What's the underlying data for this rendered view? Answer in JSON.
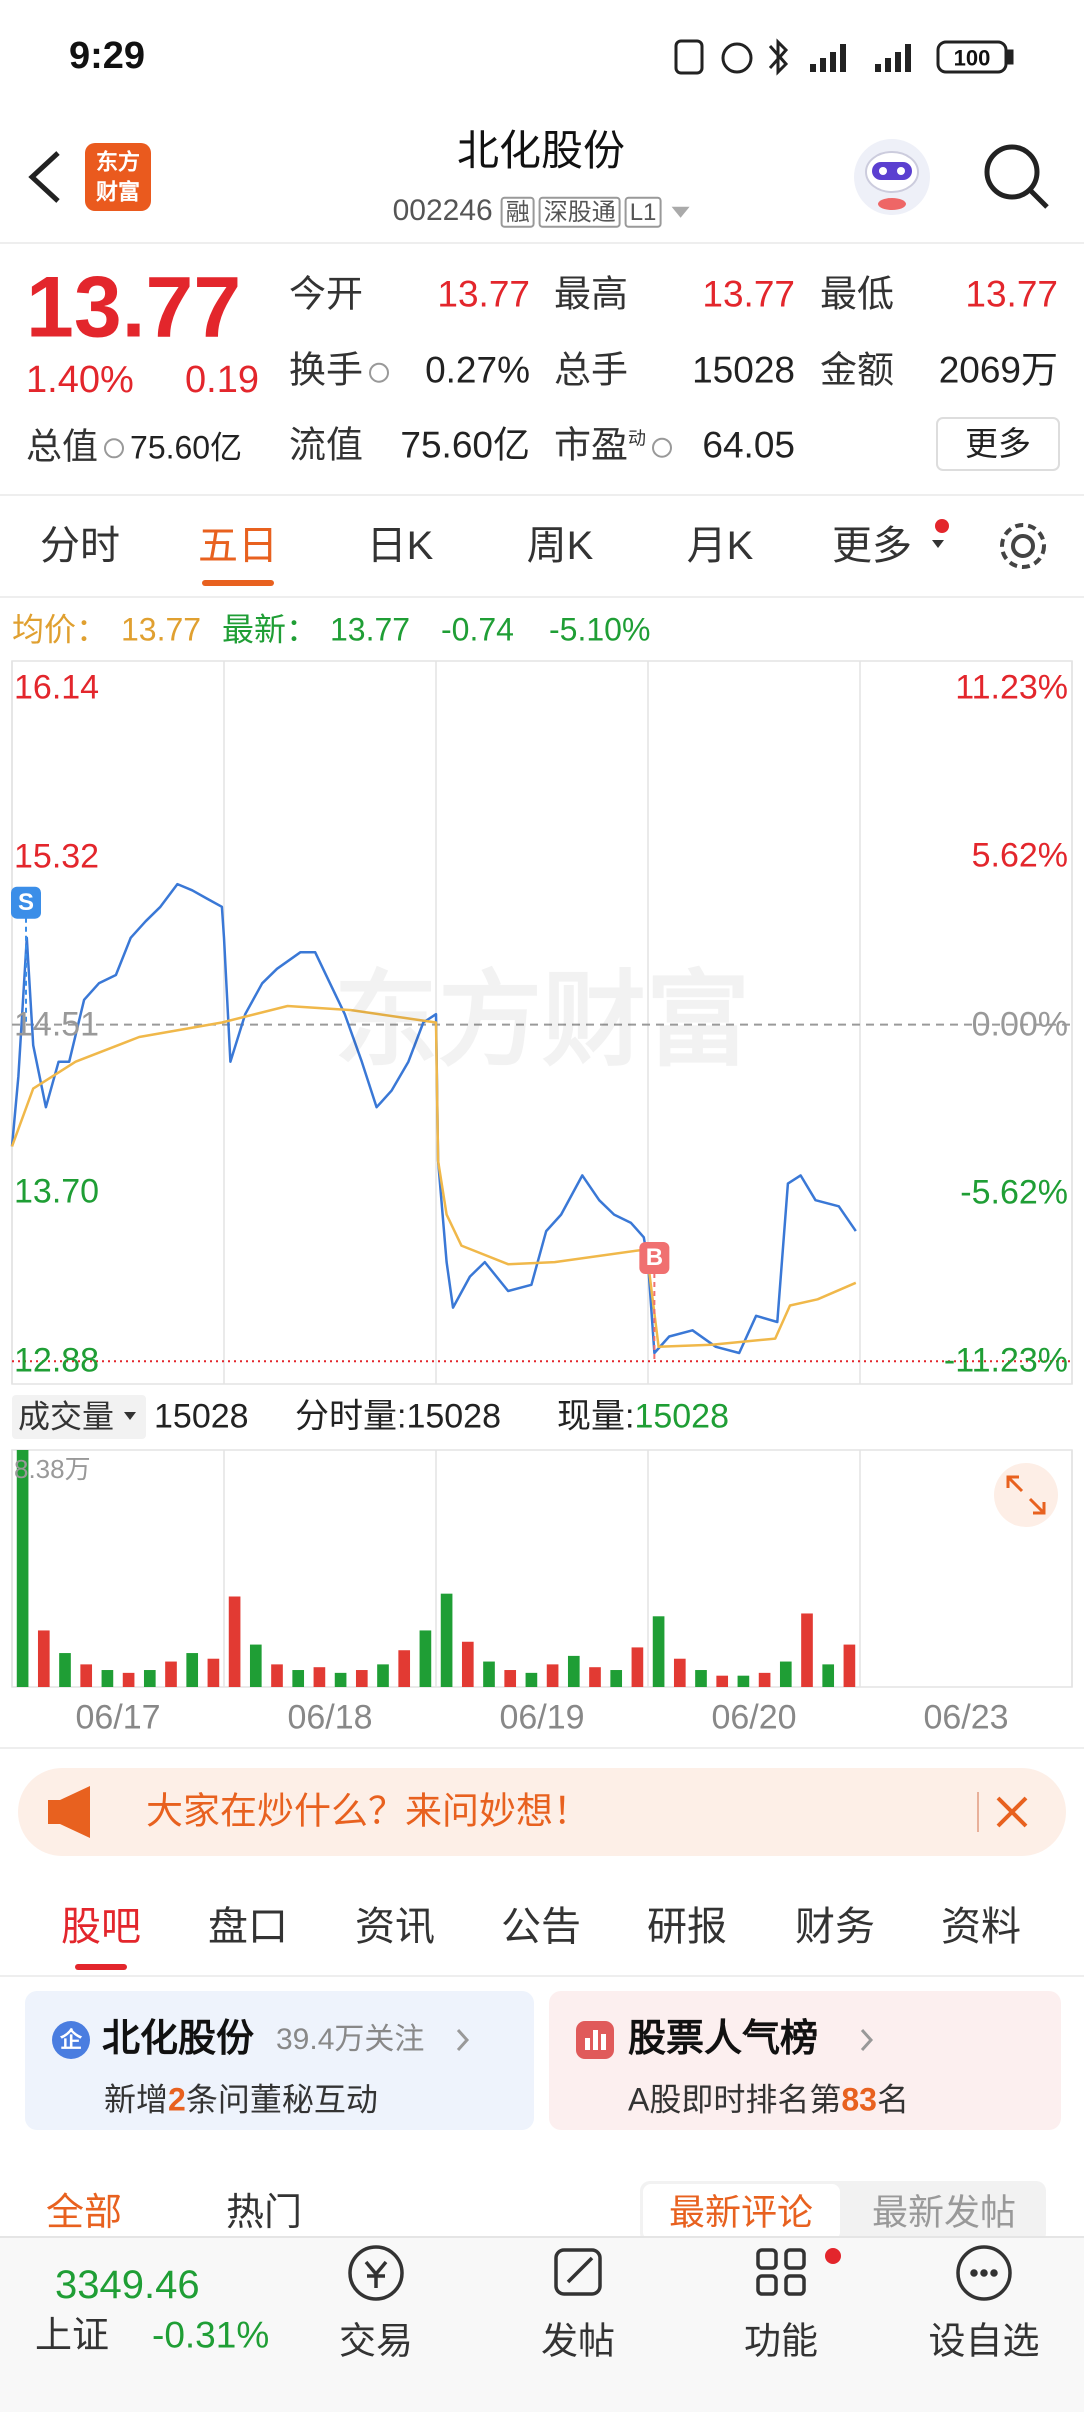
{
  "status_bar": {
    "time": "9:29",
    "battery": "100"
  },
  "header": {
    "logo": [
      "东方",
      "财富"
    ],
    "title": "北化股份",
    "code": "002246",
    "tags": [
      "融",
      "深股通",
      "L1"
    ]
  },
  "quote": {
    "price": "13.77",
    "change_pct": "1.40%",
    "change": "0.19",
    "total_value": {
      "label": "总值",
      "value": "75.60亿"
    },
    "stats": [
      {
        "label": "今开",
        "value": "13.77"
      },
      {
        "label": "最高",
        "value": "13.77"
      },
      {
        "label": "最低",
        "value": "13.77"
      },
      {
        "label": "换手",
        "value": "0.27%",
        "info": true
      },
      {
        "label": "总手",
        "value": "15028"
      },
      {
        "label": "金额",
        "value": "2069万"
      },
      {
        "label": "流值",
        "value": "75.60亿"
      },
      {
        "label": "市盈",
        "sup": "动",
        "value": "64.05",
        "info": true
      }
    ],
    "more": "更多"
  },
  "period_tabs": {
    "items": [
      "分时",
      "五日",
      "日K",
      "周K",
      "月K",
      "更多"
    ],
    "active": 1
  },
  "chart_info": {
    "avg_label": "均价：",
    "avg": "13.77",
    "latest_label": "最新：",
    "latest": "13.77",
    "change": "-0.74",
    "change_pct": "-5.10%"
  },
  "volume_info": {
    "selector": "成交量",
    "total": "15028",
    "minute_label": "分时量:",
    "minute": "15028",
    "current_label": "现量:",
    "current": "15028"
  },
  "chart_data": [
    {
      "type": "line",
      "xlim": [
        0,
        5
      ],
      "xgrid": [
        0,
        1,
        2,
        3,
        4,
        5
      ],
      "ylim": [
        12.77,
        16.27
      ],
      "yticks": [
        16.14,
        15.32,
        14.51,
        {
          "value": 13.7,
          "label": "13.70"
        },
        12.88
      ],
      "y2lim": [
        -11.99,
        12.13
      ],
      "y2ticks": [
        {
          "value": 11.23,
          "label": "11.23%"
        },
        {
          "value": 5.62,
          "label": "5.62%"
        },
        {
          "value": 0,
          "label": "0.00%"
        },
        {
          "value": -5.62,
          "label": "-5.62%"
        },
        {
          "value": -11.23,
          "label": "-11.23%"
        }
      ],
      "reference_line": 14.51,
      "lower_limit": 12.88,
      "watermark": "东方财富",
      "annotations": [
        {
          "text": "S",
          "x": 0,
          "y": 15.1,
          "color": "#3b8ee8"
        },
        {
          "text": "B",
          "x": 3.03,
          "y": 13.38,
          "color": "#f07070"
        }
      ],
      "series": [
        {
          "color": "#3a78d6",
          "x": [
            0,
            0.03,
            0.07,
            0.1,
            0.16,
            0.22,
            0.27,
            0.34,
            0.41,
            0.49,
            0.56,
            0.63,
            0.7,
            0.78,
            0.85,
            0.92,
            0.99,
            1.0,
            1.03,
            1.1,
            1.18,
            1.25,
            1.36,
            1.43,
            1.5,
            1.57,
            1.65,
            1.72,
            1.79,
            1.87,
            1.94,
            2.0,
            2.01,
            2.05,
            2.08,
            2.16,
            2.23,
            2.34,
            2.45,
            2.52,
            2.59,
            2.69,
            2.77,
            2.84,
            2.92,
            2.98,
            3.0,
            3.03,
            3.1,
            3.21,
            3.32,
            3.43,
            3.51,
            3.61,
            3.66,
            3.72,
            3.79,
            3.9,
            3.98
          ],
          "values": [
            13.92,
            14.26,
            14.93,
            14.41,
            14.11,
            14.33,
            14.33,
            14.63,
            14.71,
            14.75,
            14.93,
            15.01,
            15.08,
            15.19,
            15.16,
            15.12,
            15.08,
            14.93,
            14.33,
            14.56,
            14.71,
            14.78,
            14.86,
            14.86,
            14.71,
            14.56,
            14.33,
            14.11,
            14.19,
            14.33,
            14.52,
            14.56,
            13.85,
            13.36,
            13.14,
            13.29,
            13.36,
            13.22,
            13.25,
            13.51,
            13.59,
            13.78,
            13.66,
            13.59,
            13.55,
            13.48,
            13.36,
            12.92,
            13.0,
            13.03,
            12.95,
            12.92,
            13.1,
            13.07,
            13.74,
            13.78,
            13.66,
            13.63,
            13.51
          ]
        },
        {
          "color": "#f0b84a",
          "x": [
            0,
            0.1,
            0.3,
            0.6,
            0.99,
            1.3,
            1.6,
            2.0,
            2.01,
            2.05,
            2.12,
            2.34,
            2.56,
            2.98,
            3.0,
            3.05,
            3.3,
            3.6,
            3.67,
            3.8,
            3.98
          ],
          "values": [
            13.92,
            14.2,
            14.33,
            14.45,
            14.52,
            14.6,
            14.58,
            14.52,
            13.85,
            13.59,
            13.44,
            13.35,
            13.36,
            13.42,
            13.36,
            12.95,
            12.96,
            12.99,
            13.15,
            13.18,
            13.26
          ]
        }
      ]
    },
    {
      "type": "bar",
      "xlim": [
        0,
        5
      ],
      "xgrid": [
        0,
        1,
        2,
        3,
        4,
        5
      ],
      "ylim": [
        0,
        8.38
      ],
      "yticks": [
        {
          "value": 8.38,
          "label": "8.38万"
        }
      ],
      "xticks": [
        {
          "value": 0.5,
          "label": "06/17"
        },
        {
          "value": 1.5,
          "label": "06/18"
        },
        {
          "value": 2.5,
          "label": "06/19"
        },
        {
          "value": 3.5,
          "label": "06/20"
        },
        {
          "value": 4.5,
          "label": "06/23"
        }
      ],
      "x": [
        0.05,
        0.15,
        0.25,
        0.35,
        0.45,
        0.55,
        0.65,
        0.75,
        0.85,
        0.95,
        1.05,
        1.15,
        1.25,
        1.35,
        1.45,
        1.55,
        1.65,
        1.75,
        1.85,
        1.95,
        2.05,
        2.15,
        2.25,
        2.35,
        2.45,
        2.55,
        2.65,
        2.75,
        2.85,
        2.95,
        3.05,
        3.15,
        3.25,
        3.35,
        3.45,
        3.55,
        3.65,
        3.75,
        3.85,
        3.95
      ],
      "values": [
        8.38,
        2.0,
        1.2,
        0.8,
        0.6,
        0.5,
        0.6,
        0.9,
        1.2,
        1.0,
        3.2,
        1.5,
        0.8,
        0.6,
        0.7,
        0.5,
        0.6,
        0.8,
        1.3,
        2.0,
        3.3,
        1.6,
        0.9,
        0.6,
        0.5,
        0.8,
        1.1,
        0.7,
        0.6,
        1.4,
        2.5,
        1.0,
        0.6,
        0.4,
        0.4,
        0.5,
        0.9,
        2.6,
        0.8,
        1.5
      ],
      "colors": [
        "#1f9e35",
        "#e23a33",
        "#1f9e35",
        "#e23a33",
        "#1f9e35",
        "#e23a33",
        "#1f9e35",
        "#e23a33",
        "#1f9e35",
        "#e23a33",
        "#e23a33",
        "#1f9e35",
        "#e23a33",
        "#1f9e35",
        "#e23a33",
        "#1f9e35",
        "#e23a33",
        "#1f9e35",
        "#e23a33",
        "#1f9e35",
        "#1f9e35",
        "#e23a33",
        "#1f9e35",
        "#e23a33",
        "#1f9e35",
        "#e23a33",
        "#1f9e35",
        "#e23a33",
        "#1f9e35",
        "#e23a33",
        "#1f9e35",
        "#e23a33",
        "#1f9e35",
        "#e23a33",
        "#1f9e35",
        "#e23a33",
        "#1f9e35",
        "#e23a33",
        "#1f9e35",
        "#e23a33"
      ]
    }
  ],
  "banner": {
    "text": "大家在炒什么？来问妙想！"
  },
  "section_tabs": {
    "items": [
      "股吧",
      "盘口",
      "资讯",
      "公告",
      "研报",
      "财务",
      "资料"
    ],
    "active": 0
  },
  "cards": [
    {
      "icon": "企",
      "title": "北化股份",
      "meta": "39.4万关注",
      "text": [
        "新增",
        "2",
        "条问董秘互动"
      ]
    },
    {
      "title": "股票人气榜",
      "text": [
        "A股即时排名第",
        "83",
        "名"
      ]
    }
  ],
  "feed_tabs": {
    "items": [
      "全部",
      "热门"
    ],
    "active": 0,
    "sort": [
      "最新评论",
      "最新发帖"
    ],
    "sort_active": 0
  },
  "bottom_bar": {
    "index_value": "3349.46",
    "index_name": "上证",
    "index_change": "-0.31%",
    "items": [
      "交易",
      "发帖",
      "功能",
      "设自选"
    ]
  }
}
